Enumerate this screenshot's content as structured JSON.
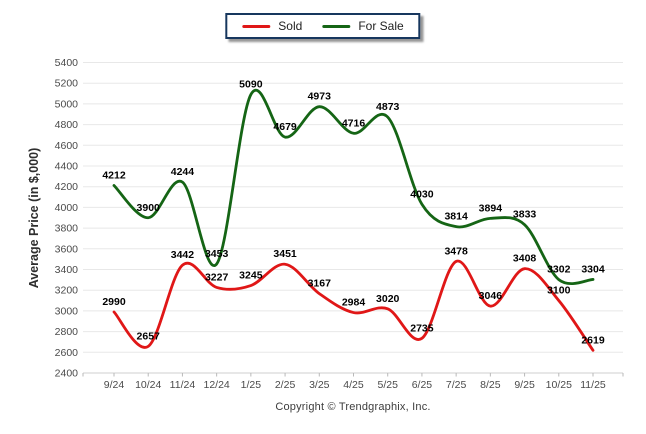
{
  "chart_data": {
    "type": "line",
    "title": "",
    "xlabel": "",
    "ylabel": "Average Price (in $,000)",
    "ylim": [
      2400,
      5400
    ],
    "ytick_step": 200,
    "yticks": [
      2400,
      2600,
      2800,
      3000,
      3200,
      3400,
      3600,
      3800,
      4000,
      4200,
      4400,
      4600,
      4800,
      5000,
      5200,
      5400
    ],
    "grid": true,
    "legend_position": "top-center",
    "categories": [
      "9/24",
      "10/24",
      "11/24",
      "12/24",
      "1/25",
      "2/25",
      "3/25",
      "4/25",
      "5/25",
      "6/25",
      "7/25",
      "8/25",
      "9/25",
      "10/25",
      "11/25"
    ],
    "series": [
      {
        "name": "Sold",
        "color": "#e01717",
        "values": [
          2990,
          2657,
          3442,
          3227,
          3245,
          3451,
          3167,
          2984,
          3020,
          2735,
          3478,
          3046,
          3408,
          3100,
          2619
        ]
      },
      {
        "name": "For Sale",
        "color": "#156515",
        "values": [
          4212,
          3900,
          4244,
          3453,
          5090,
          4679,
          4973,
          4716,
          4873,
          4030,
          3814,
          3894,
          3833,
          3302,
          3304
        ]
      }
    ]
  },
  "colors": {
    "grid_line": "#e8e8e8",
    "axis_line": "#cfcfcf",
    "tick_mark": "#b9b9b9",
    "axis_text": "#4a4a4a",
    "data_label": "#000000",
    "legend_border": "#17375e"
  },
  "footer": {
    "copyright": "Copyright © Trendgraphix, Inc."
  }
}
